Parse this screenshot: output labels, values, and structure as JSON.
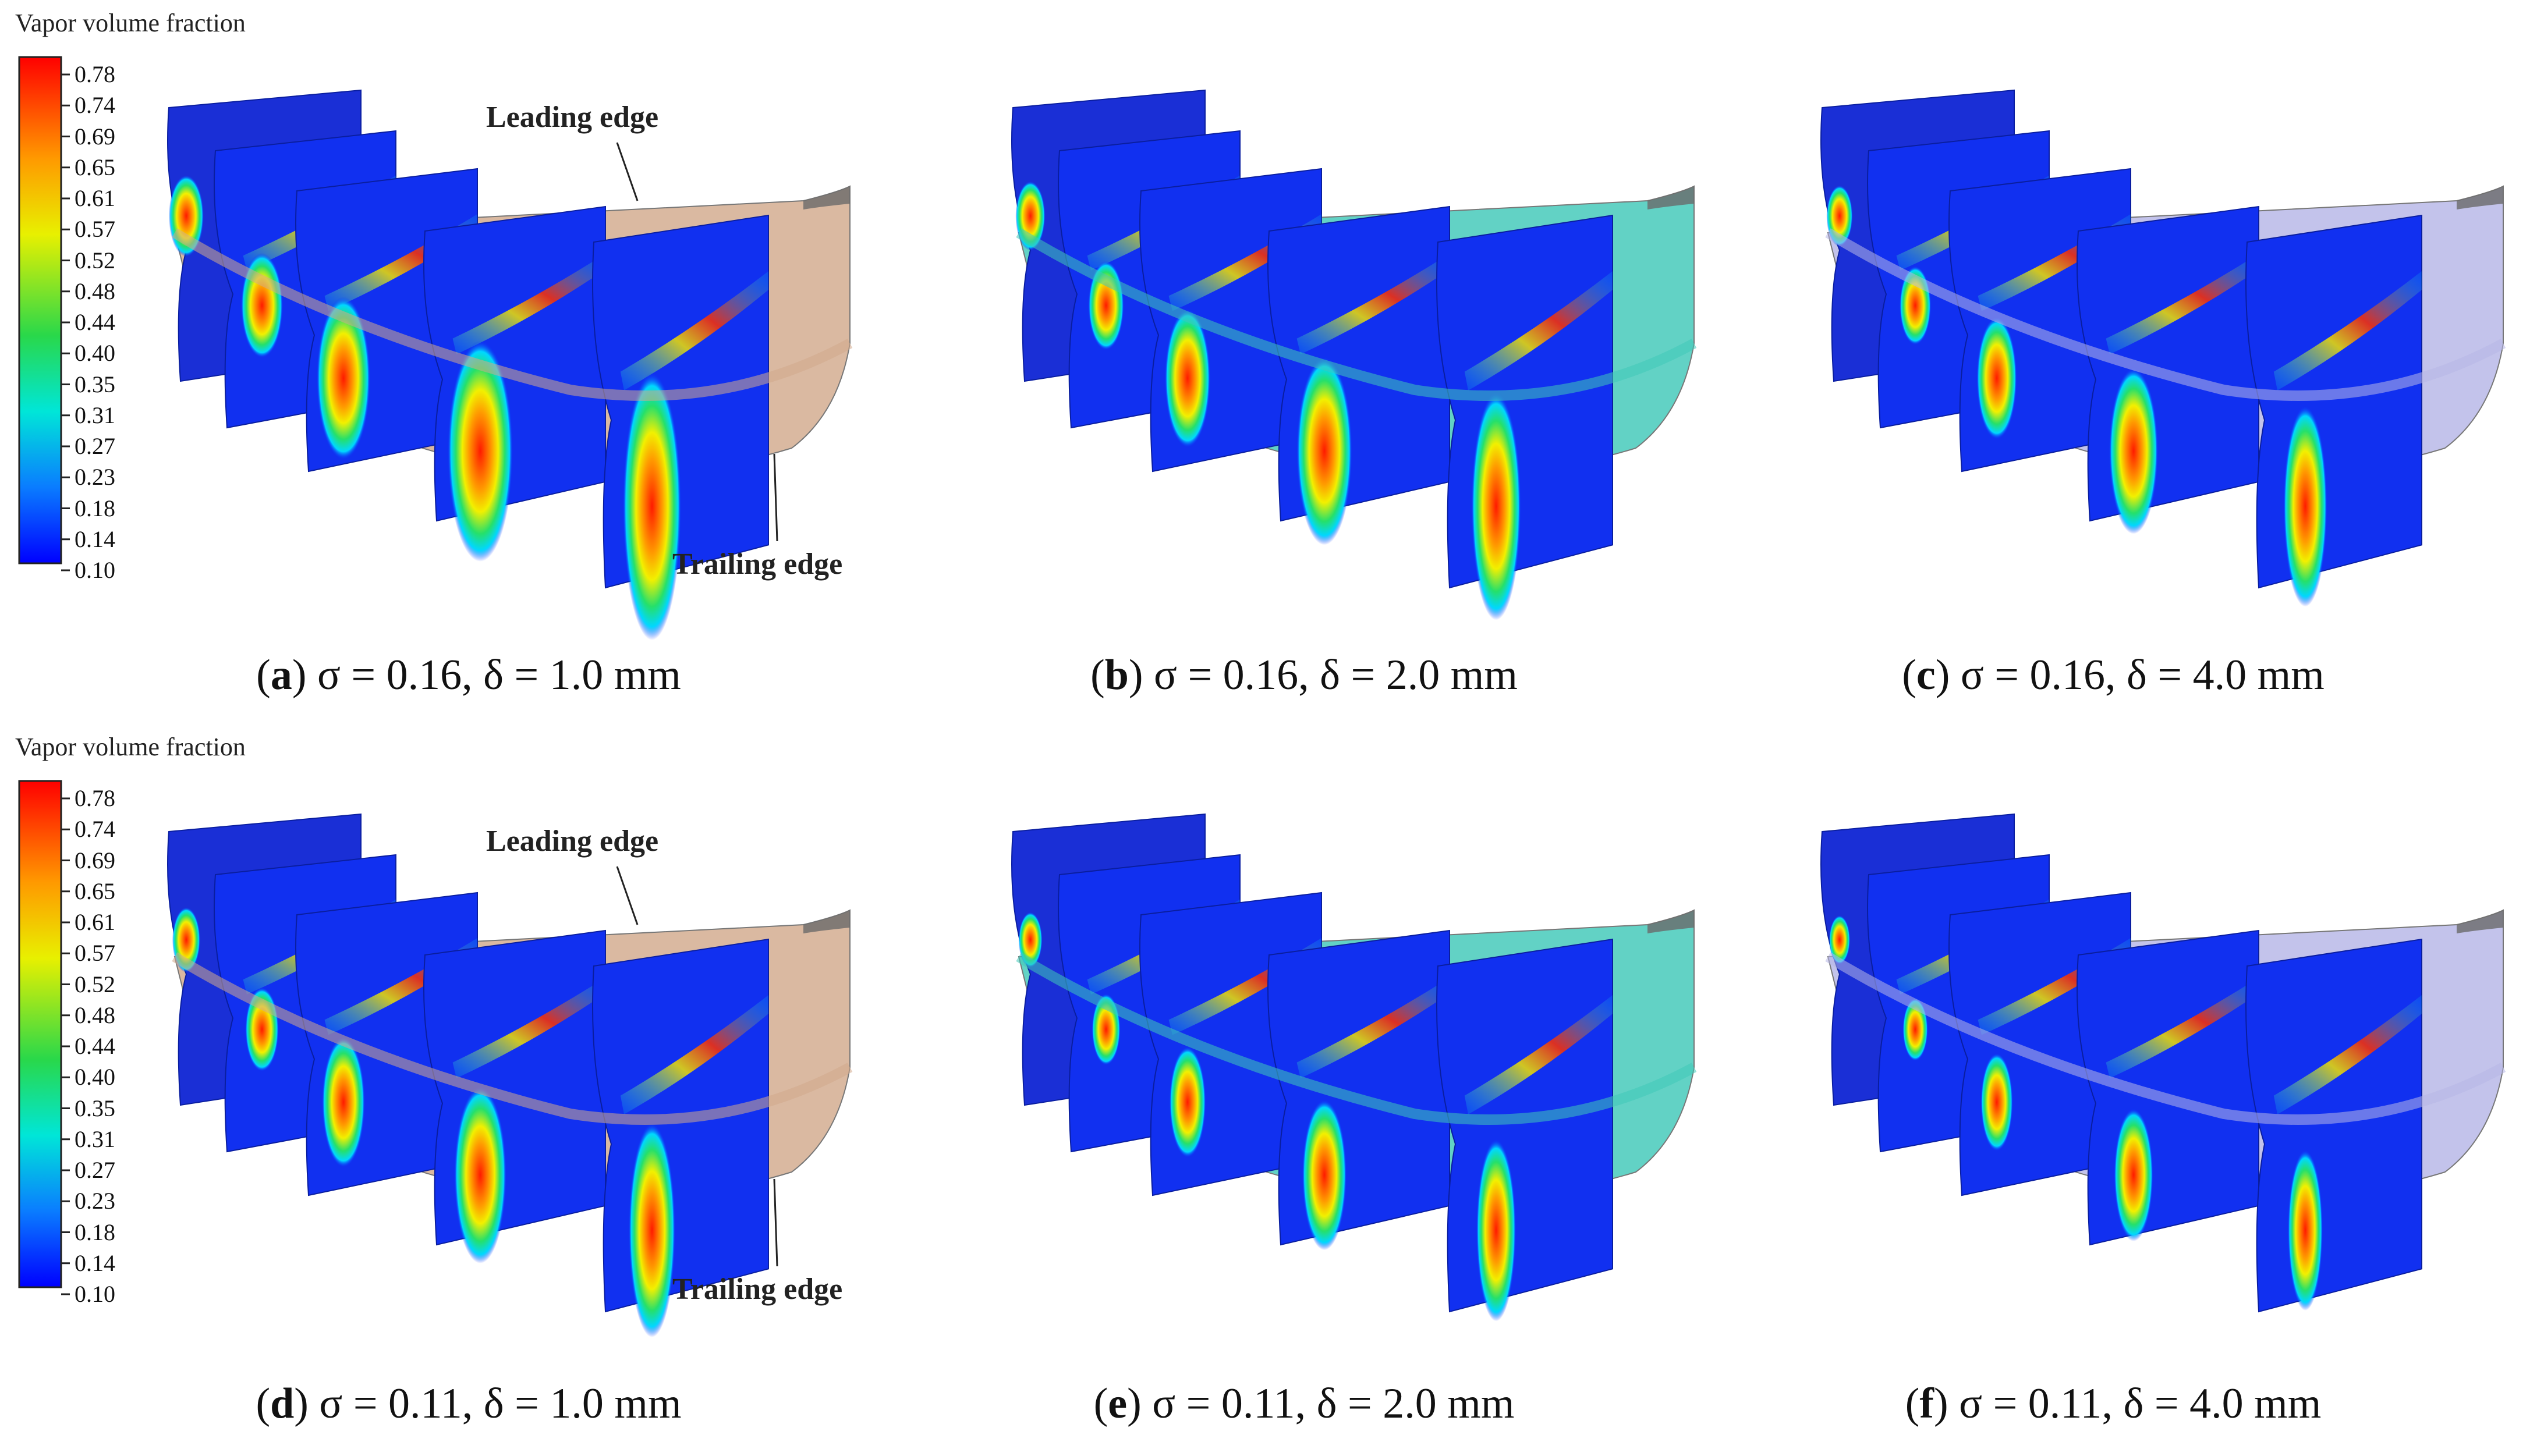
{
  "legend": {
    "title": "Vapor volume fraction",
    "ticks": [
      "0.78",
      "0.74",
      "0.69",
      "0.65",
      "0.61",
      "0.57",
      "0.52",
      "0.48",
      "0.44",
      "0.40",
      "0.35",
      "0.31",
      "0.27",
      "0.23",
      "0.18",
      "0.14",
      "0.10"
    ]
  },
  "annotations": {
    "leading_edge": "Leading edge",
    "trailing_edge": "Trailing edge"
  },
  "panels": [
    {
      "id": "a",
      "caption": "σ = 0.16, δ = 1.0 mm",
      "blade_color": "#d2aa8c"
    },
    {
      "id": "b",
      "caption": "σ = 0.16, δ = 2.0 mm",
      "blade_color": "#3fc8b8"
    },
    {
      "id": "c",
      "caption": "σ = 0.16, δ = 4.0 mm",
      "blade_color": "#b6b6e6"
    },
    {
      "id": "d",
      "caption": "σ = 0.11, δ = 1.0 mm",
      "blade_color": "#d2aa8c"
    },
    {
      "id": "e",
      "caption": "σ = 0.11, δ = 2.0 mm",
      "blade_color": "#3fc8b8"
    },
    {
      "id": "f",
      "caption": "σ = 0.11, δ = 4.0 mm",
      "blade_color": "#b6b6e6"
    }
  ]
}
